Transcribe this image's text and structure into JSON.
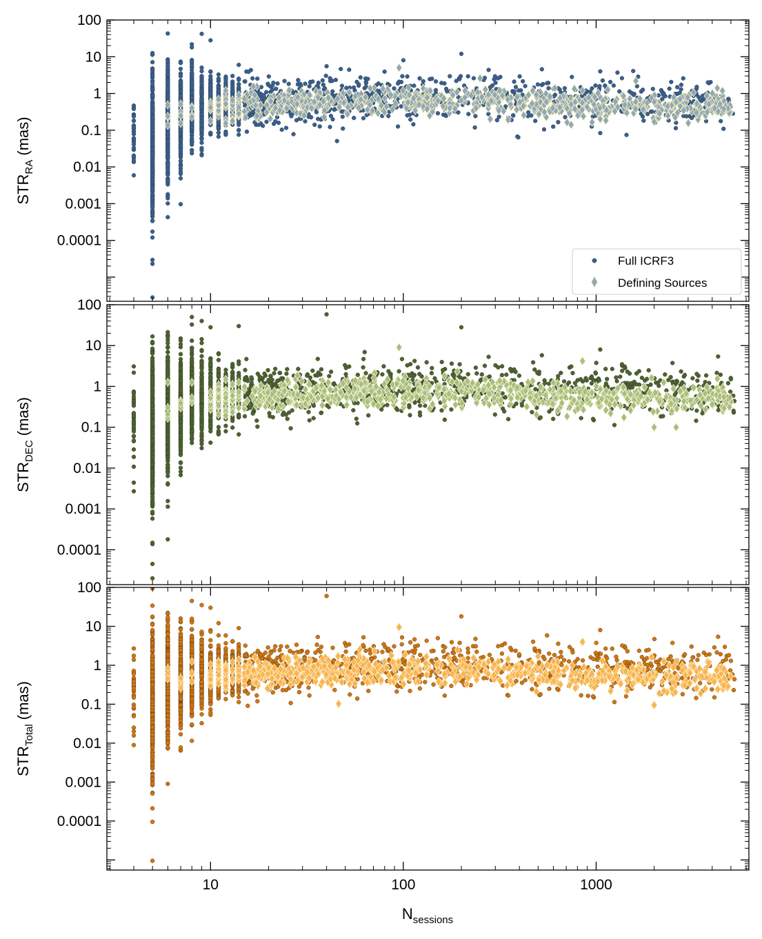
{
  "chart_data": {
    "type": "scatter",
    "xscale": "log",
    "yscale": "log",
    "xlim": [
      2.9,
      6200
    ],
    "xlabel": {
      "main": "N",
      "sub": "sessions"
    },
    "xticks": [
      "10",
      "100",
      "1000"
    ],
    "xtick_values": [
      10,
      100,
      1000
    ],
    "grid": false,
    "legend": {
      "entries": [
        "Full ICRF3",
        "Defining Sources"
      ],
      "location": "lower-right of top panel"
    },
    "panels": [
      {
        "id": "ra",
        "ylabel": {
          "main": "STR",
          "sub": "RA",
          "unit": " (mas)"
        },
        "ylim": [
          2.2e-06,
          100
        ],
        "yticks": [
          "100",
          "10",
          "1",
          "0.1",
          "0.01",
          "0.001",
          "0.0001"
        ],
        "ytick_values": [
          100,
          10,
          1,
          0.1,
          0.01,
          0.001,
          0.0001
        ],
        "full_color": "#3b5f8a",
        "full_edge": "#2a4468",
        "def_color": "#8fa6bd",
        "def_edge": "#f3eeb4",
        "full_median": [
          [
            4,
            0.08
          ],
          [
            5,
            0.04
          ],
          [
            6,
            0.15
          ],
          [
            7,
            0.25
          ],
          [
            8,
            0.4
          ],
          [
            10,
            0.45
          ],
          [
            20,
            0.6
          ],
          [
            100,
            0.8
          ],
          [
            1000,
            0.6
          ],
          [
            5000,
            0.6
          ]
        ],
        "full_spread": 0.55,
        "def_median": [
          [
            6,
            0.35
          ],
          [
            10,
            0.4
          ],
          [
            30,
            0.55
          ],
          [
            100,
            0.7
          ],
          [
            300,
            0.6
          ],
          [
            1000,
            0.45
          ],
          [
            5000,
            0.45
          ]
        ],
        "def_spread": 0.3,
        "full_points": [
          [
            4,
            0.38
          ],
          [
            4,
            0.015
          ],
          [
            5,
            2.8e-06
          ],
          [
            5,
            2.3e-05
          ],
          [
            5,
            0.00012
          ],
          [
            6,
            0.0014
          ],
          [
            6,
            4.5
          ],
          [
            7,
            7
          ],
          [
            8,
            18
          ],
          [
            9,
            42
          ],
          [
            10,
            28
          ],
          [
            14,
            6
          ],
          [
            40,
            5.5
          ],
          [
            100,
            8
          ],
          [
            200,
            12
          ],
          [
            1050,
            4
          ],
          [
            3800,
            2
          ]
        ],
        "def_points": [
          [
            95,
            5
          ],
          [
            250,
            2.6
          ],
          [
            850,
            1.2
          ],
          [
            1050,
            0.2
          ],
          [
            2000,
            0.17
          ],
          [
            4600,
            0.38
          ]
        ]
      },
      {
        "id": "dec",
        "ylabel": {
          "main": "STR",
          "sub": "DEC",
          "unit": " (mas)"
        },
        "ylim": [
          1.4e-05,
          100
        ],
        "yticks": [
          "100",
          "10",
          "1",
          "0.1",
          "0.01",
          "0.001",
          "0.0001"
        ],
        "ytick_values": [
          100,
          10,
          1,
          0.1,
          0.01,
          0.001,
          0.0001
        ],
        "full_color": "#4d6233",
        "full_edge": "#34441f",
        "def_color": "#a9bd7f",
        "def_edge": "#eef2cc",
        "full_median": [
          [
            4,
            0.15
          ],
          [
            5,
            0.08
          ],
          [
            6,
            0.25
          ],
          [
            7,
            0.35
          ],
          [
            8,
            0.5
          ],
          [
            10,
            0.55
          ],
          [
            20,
            0.7
          ],
          [
            100,
            0.9
          ],
          [
            1000,
            0.8
          ],
          [
            5000,
            0.8
          ]
        ],
        "full_spread": 0.55,
        "def_median": [
          [
            6,
            0.5
          ],
          [
            10,
            0.5
          ],
          [
            30,
            0.65
          ],
          [
            100,
            0.8
          ],
          [
            300,
            0.7
          ],
          [
            1000,
            0.5
          ],
          [
            5000,
            0.5
          ]
        ],
        "def_spread": 0.3,
        "full_points": [
          [
            4,
            0.7
          ],
          [
            4,
            0.0027
          ],
          [
            4,
            0.0044
          ],
          [
            5,
            2e-05
          ],
          [
            5,
            4.5e-05
          ],
          [
            6,
            0.00018
          ],
          [
            8,
            50
          ],
          [
            9,
            40
          ],
          [
            10,
            28
          ],
          [
            14,
            30
          ],
          [
            40,
            58
          ],
          [
            200,
            28
          ],
          [
            1050,
            8
          ],
          [
            5000,
            1.5
          ]
        ],
        "def_points": [
          [
            95,
            9
          ],
          [
            850,
            4.2
          ],
          [
            2000,
            0.1
          ],
          [
            2600,
            0.1
          ],
          [
            4600,
            0.55
          ]
        ]
      },
      {
        "id": "total",
        "ylabel": {
          "main": "STR",
          "sub": "Total",
          "unit": " (mas)"
        },
        "ylim": [
          5.5e-06,
          100
        ],
        "yticks": [
          "100",
          "10",
          "1",
          "0.1",
          "0.01",
          "0.001",
          "0.0001"
        ],
        "ytick_values": [
          100,
          10,
          1,
          0.1,
          0.01,
          0.001,
          0.0001
        ],
        "full_color": "#d2760f",
        "full_edge": "#5c3a10",
        "def_color": "#f8b44f",
        "def_edge": "#fde7bb",
        "full_median": [
          [
            4,
            0.2
          ],
          [
            5,
            0.1
          ],
          [
            6,
            0.35
          ],
          [
            7,
            0.45
          ],
          [
            8,
            0.6
          ],
          [
            10,
            0.65
          ],
          [
            20,
            0.8
          ],
          [
            100,
            1.0
          ],
          [
            1000,
            0.8
          ],
          [
            5000,
            0.8
          ]
        ],
        "full_spread": 0.55,
        "def_median": [
          [
            6,
            0.5
          ],
          [
            10,
            0.55
          ],
          [
            30,
            0.7
          ],
          [
            100,
            0.85
          ],
          [
            300,
            0.75
          ],
          [
            1000,
            0.5
          ],
          [
            5000,
            0.5
          ]
        ],
        "def_spread": 0.3,
        "full_points": [
          [
            4,
            0.6
          ],
          [
            4,
            0.02
          ],
          [
            5,
            9.5e-06
          ],
          [
            5,
            9.5e-05
          ],
          [
            6,
            0.0009
          ],
          [
            8,
            45
          ],
          [
            9,
            35
          ],
          [
            10,
            30
          ],
          [
            14,
            9
          ],
          [
            40,
            60
          ],
          [
            200,
            18
          ],
          [
            1050,
            8
          ],
          [
            5000,
            1.3
          ]
        ],
        "def_points": [
          [
            95,
            9.5
          ],
          [
            850,
            4
          ],
          [
            2000,
            0.095
          ],
          [
            4600,
            0.3
          ],
          [
            4600,
            0.8
          ]
        ]
      }
    ]
  }
}
